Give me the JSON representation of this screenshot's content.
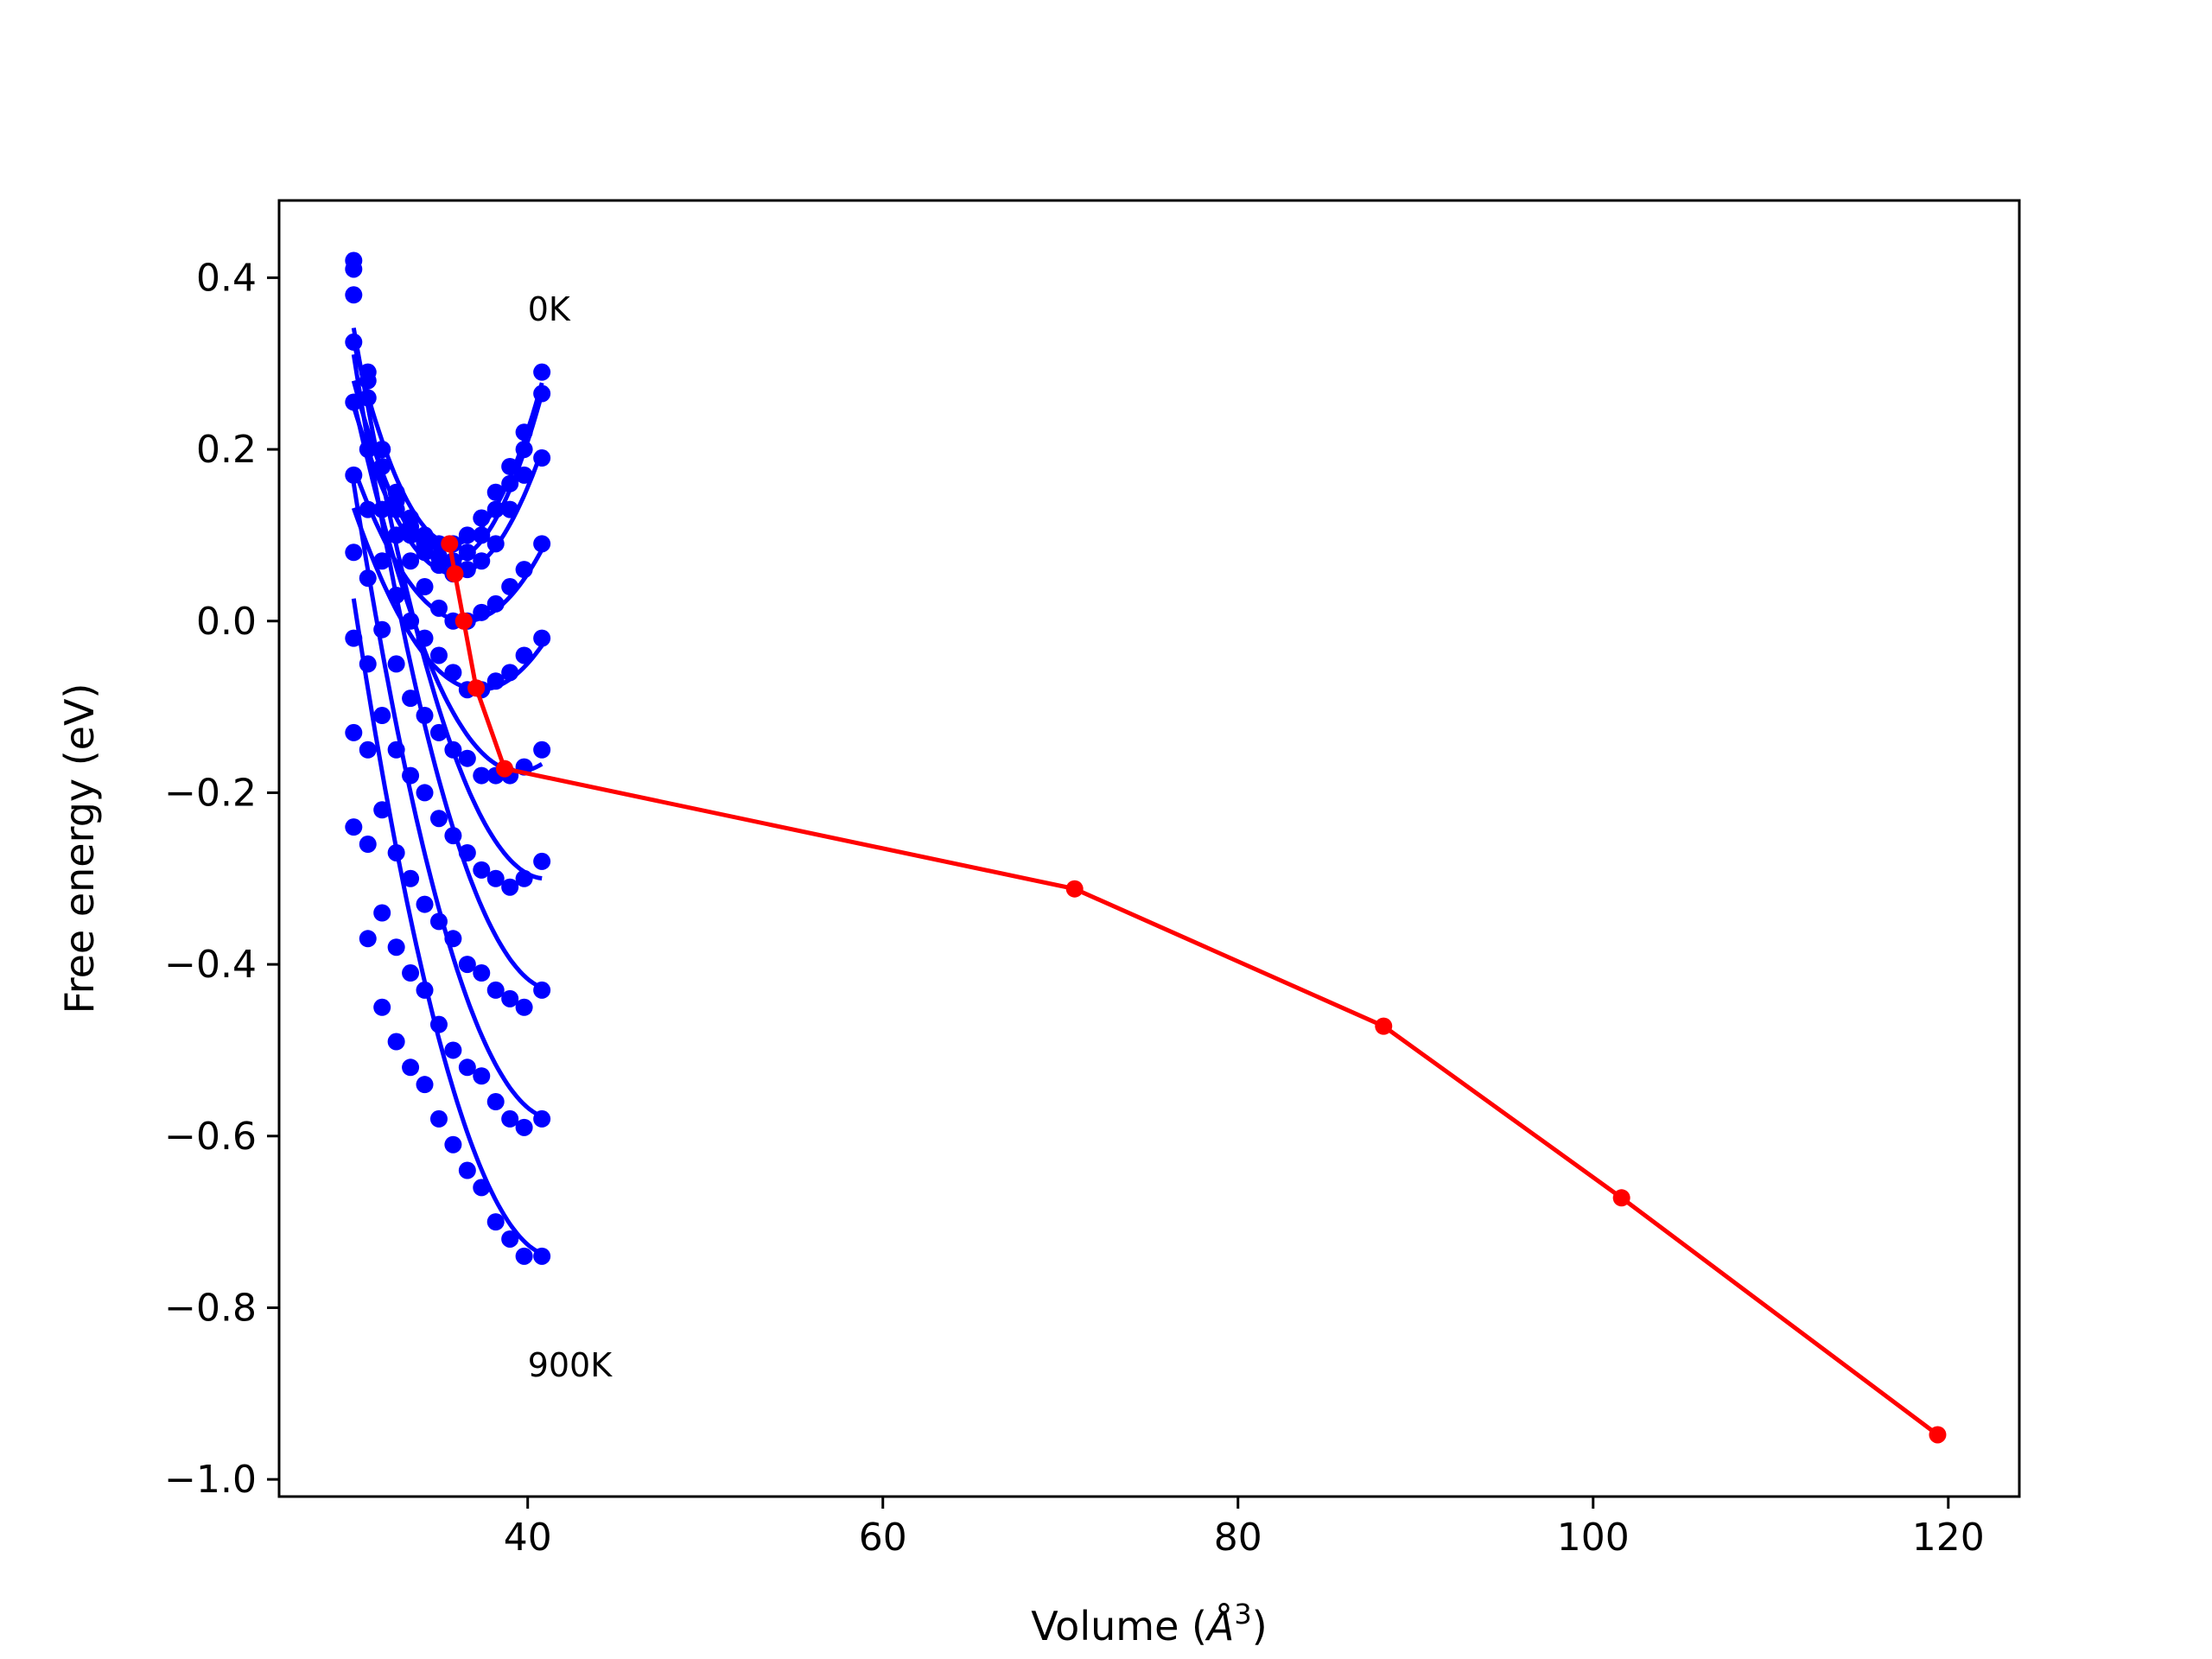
{
  "chart_data": {
    "type": "scatter",
    "title": "",
    "xlabel": "Volume (Å³)",
    "xlabel_main": "Volume (",
    "xlabel_unit": "Å",
    "xlabel_exp": "3",
    "xlabel_close": ")",
    "ylabel": "Free energy (eV)",
    "xlim": [
      26,
      124
    ],
    "ylim": [
      -1.02,
      0.49
    ],
    "xticks": [
      40,
      60,
      80,
      100,
      120
    ],
    "xtick_labels": [
      "40",
      "60",
      "80",
      "100",
      "120"
    ],
    "yticks": [
      0.4,
      0.2,
      0.0,
      -0.2,
      -0.4,
      -0.6,
      -0.8,
      -1.0
    ],
    "ytick_labels": [
      "0.4",
      "0.2",
      "0.0",
      "−0.2",
      "−0.4",
      "−0.6",
      "−0.8",
      "−1.0"
    ],
    "grid": false,
    "annotations": [
      {
        "text": "0K",
        "x": 40.0,
        "y": 0.35
      },
      {
        "text": "900K",
        "x": 40.0,
        "y": -0.88
      }
    ],
    "scatter_color": "#0000ff",
    "line_color": "#ff0000",
    "x_points": [
      30.2,
      31.0,
      31.8,
      32.6,
      33.4,
      34.2,
      35.0,
      35.8,
      36.6,
      37.4,
      38.2,
      39.0,
      39.8,
      40.8
    ],
    "curve_vmin": 30.2,
    "curve_vmax": 40.8,
    "series": [
      {
        "values": [
          0.42,
          0.29,
          0.2,
          0.15,
          0.12,
          0.1,
          0.09,
          0.09,
          0.1,
          0.12,
          0.15,
          0.18,
          0.22,
          0.29
        ],
        "fit": [
          0.09,
          35.8,
          0.0075
        ]
      },
      {
        "values": [
          0.41,
          0.28,
          0.2,
          0.14,
          0.11,
          0.09,
          0.075,
          0.07,
          0.08,
          0.1,
          0.13,
          0.16,
          0.2,
          0.265
        ],
        "fit": [
          0.07,
          35.6,
          0.0072
        ]
      },
      {
        "values": [
          0.38,
          0.26,
          0.18,
          0.13,
          0.1,
          0.08,
          0.065,
          0.055,
          0.06,
          0.07,
          0.09,
          0.13,
          0.17,
          0.19
        ],
        "fit": [
          0.055,
          35.9,
          0.006
        ]
      },
      {
        "values": [
          0.325,
          0.2,
          0.13,
          0.1,
          0.07,
          0.04,
          0.015,
          0.0,
          0.0,
          0.01,
          0.02,
          0.04,
          0.06,
          0.09
        ],
        "fit": [
          0.0,
          36.5,
          0.0045
        ]
      },
      {
        "values": [
          0.255,
          0.13,
          0.07,
          0.03,
          0.0,
          -0.02,
          -0.04,
          -0.06,
          -0.08,
          -0.08,
          -0.07,
          -0.06,
          -0.04,
          -0.02
        ],
        "fit": [
          -0.08,
          37.3,
          0.0042
        ]
      },
      {
        "values": [
          0.17,
          0.05,
          -0.01,
          -0.05,
          -0.09,
          -0.11,
          -0.13,
          -0.15,
          -0.16,
          -0.18,
          -0.18,
          -0.18,
          -0.17,
          -0.15
        ],
        "fit": [
          -0.175,
          39.5,
          0.005
        ]
      },
      {
        "values": [
          0.08,
          -0.05,
          -0.11,
          -0.15,
          -0.18,
          -0.2,
          -0.23,
          -0.25,
          -0.27,
          -0.29,
          -0.3,
          -0.31,
          -0.3,
          -0.28
        ],
        "fit": [
          -0.3,
          41.0,
          0.0055
        ]
      },
      {
        "values": [
          -0.02,
          -0.15,
          -0.22,
          -0.27,
          -0.3,
          -0.33,
          -0.35,
          -0.37,
          -0.4,
          -0.41,
          -0.43,
          -0.44,
          -0.45,
          -0.43
        ],
        "fit": [
          -0.43,
          41.5,
          0.0058
        ]
      },
      {
        "values": [
          -0.13,
          -0.26,
          -0.34,
          -0.38,
          -0.41,
          -0.43,
          -0.47,
          -0.5,
          -0.52,
          -0.53,
          -0.56,
          -0.58,
          -0.59,
          -0.58
        ],
        "fit": [
          -0.58,
          41.5,
          0.0058
        ]
      },
      {
        "values": [
          -0.24,
          -0.37,
          -0.45,
          -0.49,
          -0.52,
          -0.54,
          -0.58,
          -0.61,
          -0.64,
          -0.66,
          -0.7,
          -0.72,
          -0.74,
          -0.74
        ],
        "fit": [
          -0.74,
          41.5,
          0.006
        ]
      }
    ],
    "equilibrium_path": {
      "x": [
        35.6,
        35.9,
        36.4,
        37.1,
        38.7,
        70.8,
        88.2,
        101.6,
        119.4
      ],
      "y": [
        0.09,
        0.055,
        0.0,
        -0.078,
        -0.172,
        -0.312,
        -0.472,
        -0.672,
        -0.948
      ]
    }
  }
}
